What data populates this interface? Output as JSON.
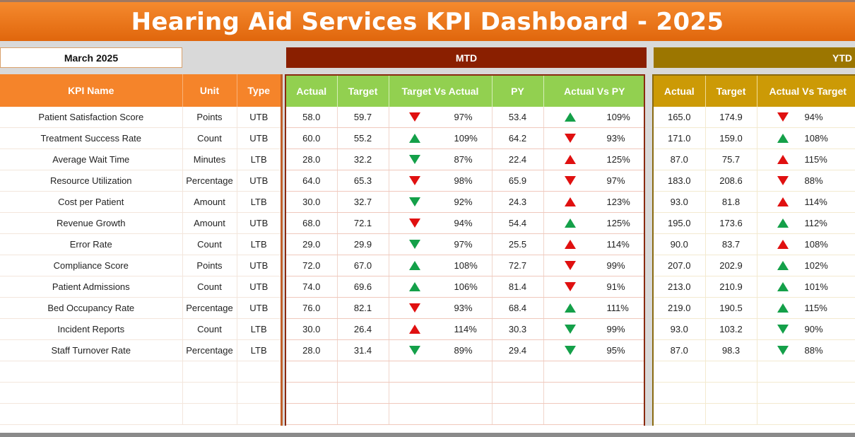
{
  "title": "Hearing Aid Services KPI Dashboard - 2025",
  "selected_month": "March 2025",
  "sections": {
    "mtd": "MTD",
    "ytd": "YTD"
  },
  "colors": {
    "up_good": "#14a049",
    "bad": "#e01010",
    "header_orange": "#f5842a",
    "mtd_green": "#92d050",
    "ytd_gold": "#cc9a06",
    "mtd_bar": "#8a1f00",
    "ytd_bar": "#9c7600"
  },
  "left_headers": [
    "KPI Name",
    "Unit",
    "Type"
  ],
  "mtd_headers": [
    "Actual",
    "Target",
    "Target Vs Actual",
    "PY",
    "Actual Vs PY"
  ],
  "ytd_headers": [
    "Actual",
    "Target",
    "Actual Vs Target"
  ],
  "rows": [
    {
      "kpi": "Patient Satisfaction Score",
      "unit": "Points",
      "type": "UTB",
      "mtd_actual": "58.0",
      "mtd_target": "59.7",
      "tva_icon": "down",
      "tva_color": "red",
      "tva": "97%",
      "py": "53.4",
      "avpy_icon": "up",
      "avpy_color": "green",
      "avpy": "109%",
      "ytd_actual": "165.0",
      "ytd_target": "174.9",
      "avt_icon": "down",
      "avt_color": "red",
      "avt": "94%"
    },
    {
      "kpi": "Treatment Success Rate",
      "unit": "Count",
      "type": "UTB",
      "mtd_actual": "60.0",
      "mtd_target": "55.2",
      "tva_icon": "up",
      "tva_color": "green",
      "tva": "109%",
      "py": "64.2",
      "avpy_icon": "down",
      "avpy_color": "red",
      "avpy": "93%",
      "ytd_actual": "171.0",
      "ytd_target": "159.0",
      "avt_icon": "up",
      "avt_color": "green",
      "avt": "108%"
    },
    {
      "kpi": "Average Wait Time",
      "unit": "Minutes",
      "type": "LTB",
      "mtd_actual": "28.0",
      "mtd_target": "32.2",
      "tva_icon": "down",
      "tva_color": "green",
      "tva": "87%",
      "py": "22.4",
      "avpy_icon": "up",
      "avpy_color": "red",
      "avpy": "125%",
      "ytd_actual": "87.0",
      "ytd_target": "75.7",
      "avt_icon": "up",
      "avt_color": "red",
      "avt": "115%"
    },
    {
      "kpi": "Resource Utilization",
      "unit": "Percentage",
      "type": "UTB",
      "mtd_actual": "64.0",
      "mtd_target": "65.3",
      "tva_icon": "down",
      "tva_color": "red",
      "tva": "98%",
      "py": "65.9",
      "avpy_icon": "down",
      "avpy_color": "red",
      "avpy": "97%",
      "ytd_actual": "183.0",
      "ytd_target": "208.6",
      "avt_icon": "down",
      "avt_color": "red",
      "avt": "88%"
    },
    {
      "kpi": "Cost per Patient",
      "unit": "Amount",
      "type": "LTB",
      "mtd_actual": "30.0",
      "mtd_target": "32.7",
      "tva_icon": "down",
      "tva_color": "green",
      "tva": "92%",
      "py": "24.3",
      "avpy_icon": "up",
      "avpy_color": "red",
      "avpy": "123%",
      "ytd_actual": "93.0",
      "ytd_target": "81.8",
      "avt_icon": "up",
      "avt_color": "red",
      "avt": "114%"
    },
    {
      "kpi": "Revenue Growth",
      "unit": "Amount",
      "type": "UTB",
      "mtd_actual": "68.0",
      "mtd_target": "72.1",
      "tva_icon": "down",
      "tva_color": "red",
      "tva": "94%",
      "py": "54.4",
      "avpy_icon": "up",
      "avpy_color": "green",
      "avpy": "125%",
      "ytd_actual": "195.0",
      "ytd_target": "173.6",
      "avt_icon": "up",
      "avt_color": "green",
      "avt": "112%"
    },
    {
      "kpi": "Error Rate",
      "unit": "Count",
      "type": "LTB",
      "mtd_actual": "29.0",
      "mtd_target": "29.9",
      "tva_icon": "down",
      "tva_color": "green",
      "tva": "97%",
      "py": "25.5",
      "avpy_icon": "up",
      "avpy_color": "red",
      "avpy": "114%",
      "ytd_actual": "90.0",
      "ytd_target": "83.7",
      "avt_icon": "up",
      "avt_color": "red",
      "avt": "108%"
    },
    {
      "kpi": "Compliance Score",
      "unit": "Points",
      "type": "UTB",
      "mtd_actual": "72.0",
      "mtd_target": "67.0",
      "tva_icon": "up",
      "tva_color": "green",
      "tva": "108%",
      "py": "72.7",
      "avpy_icon": "down",
      "avpy_color": "red",
      "avpy": "99%",
      "ytd_actual": "207.0",
      "ytd_target": "202.9",
      "avt_icon": "up",
      "avt_color": "green",
      "avt": "102%"
    },
    {
      "kpi": "Patient Admissions",
      "unit": "Count",
      "type": "UTB",
      "mtd_actual": "74.0",
      "mtd_target": "69.6",
      "tva_icon": "up",
      "tva_color": "green",
      "tva": "106%",
      "py": "81.4",
      "avpy_icon": "down",
      "avpy_color": "red",
      "avpy": "91%",
      "ytd_actual": "213.0",
      "ytd_target": "210.9",
      "avt_icon": "up",
      "avt_color": "green",
      "avt": "101%"
    },
    {
      "kpi": "Bed Occupancy Rate",
      "unit": "Percentage",
      "type": "UTB",
      "mtd_actual": "76.0",
      "mtd_target": "82.1",
      "tva_icon": "down",
      "tva_color": "red",
      "tva": "93%",
      "py": "68.4",
      "avpy_icon": "up",
      "avpy_color": "green",
      "avpy": "111%",
      "ytd_actual": "219.0",
      "ytd_target": "190.5",
      "avt_icon": "up",
      "avt_color": "green",
      "avt": "115%"
    },
    {
      "kpi": "Incident Reports",
      "unit": "Count",
      "type": "LTB",
      "mtd_actual": "30.0",
      "mtd_target": "26.4",
      "tva_icon": "up",
      "tva_color": "red",
      "tva": "114%",
      "py": "30.3",
      "avpy_icon": "down",
      "avpy_color": "green",
      "avpy": "99%",
      "ytd_actual": "93.0",
      "ytd_target": "103.2",
      "avt_icon": "down",
      "avt_color": "green",
      "avt": "90%"
    },
    {
      "kpi": "Staff Turnover Rate",
      "unit": "Percentage",
      "type": "LTB",
      "mtd_actual": "28.0",
      "mtd_target": "31.4",
      "tva_icon": "down",
      "tva_color": "green",
      "tva": "89%",
      "py": "29.4",
      "avpy_icon": "down",
      "avpy_color": "green",
      "avpy": "95%",
      "ytd_actual": "87.0",
      "ytd_target": "98.3",
      "avt_icon": "down",
      "avt_color": "green",
      "avt": "88%"
    }
  ],
  "empty_rows": 3
}
